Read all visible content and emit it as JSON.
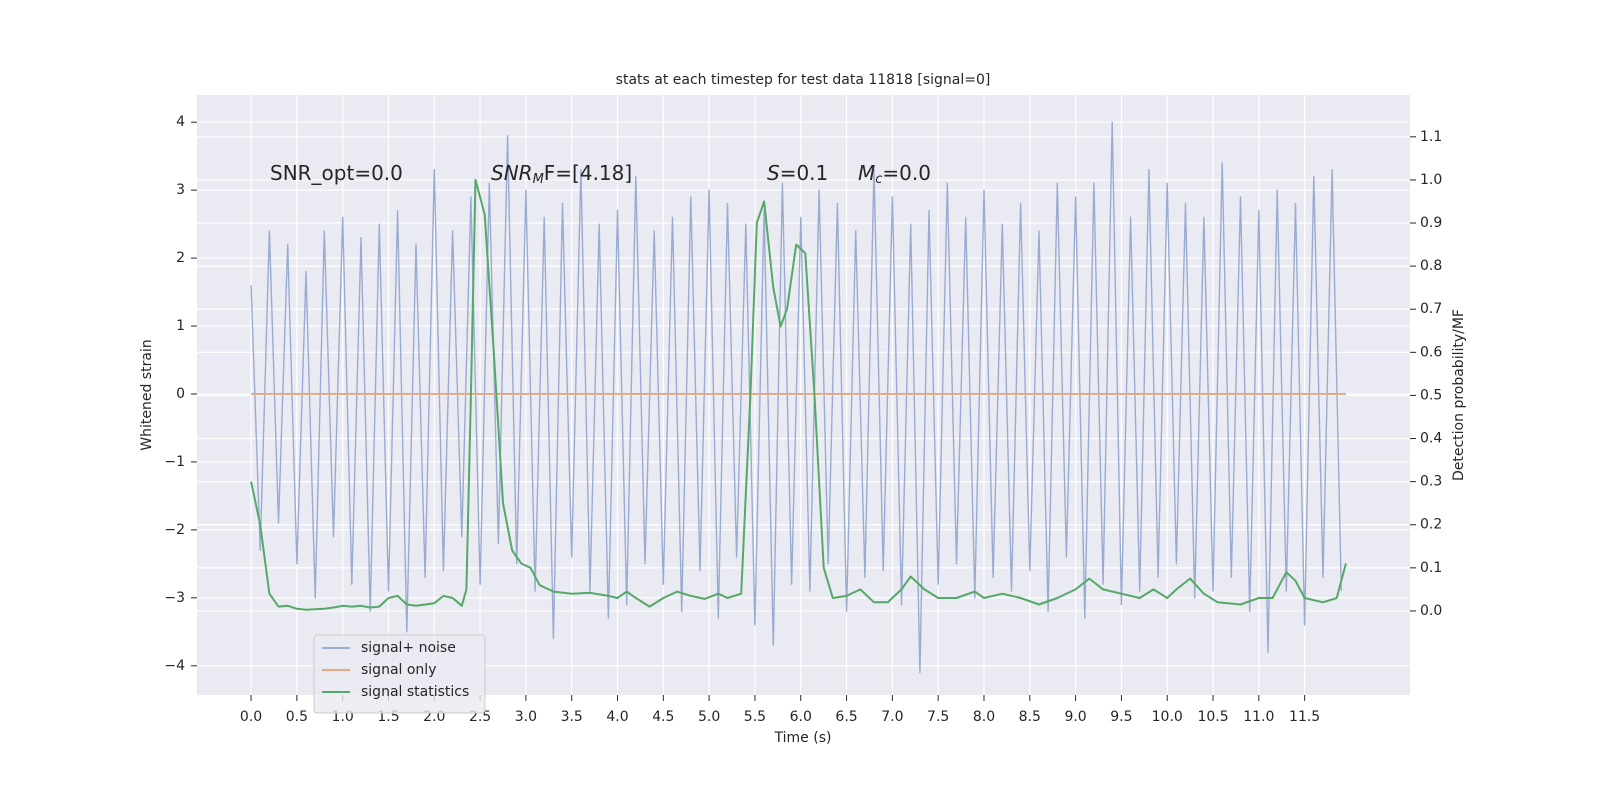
{
  "chart_data": {
    "type": "line",
    "title": "stats at each timestep for test data 11818 [signal=0]",
    "xlabel": "Time (s)",
    "ylabel": "Whitened strain",
    "y2label": "Detection probability/MF",
    "xlim": [
      -0.59,
      12.65
    ],
    "ylim": [
      -4.43,
      4.4
    ],
    "y2lim": [
      -0.195,
      1.197
    ],
    "grid": true,
    "legend": "lower left",
    "xticks": [
      {
        "value": 0,
        "label": "0.0"
      },
      0.5,
      {
        "value": 1,
        "label": "1.0"
      },
      1.5,
      {
        "value": 2,
        "label": "2.0"
      },
      2.5,
      {
        "value": 3,
        "label": "3.0"
      },
      3.5,
      {
        "value": 4,
        "label": "4.0"
      },
      4.5,
      {
        "value": 5,
        "label": "5.0"
      },
      5.5,
      {
        "value": 6,
        "label": "6.0"
      },
      6.5,
      {
        "value": 7,
        "label": "7.0"
      },
      7.5,
      {
        "value": 8,
        "label": "8.0"
      },
      8.5,
      {
        "value": 9,
        "label": "9.0"
      },
      9.5,
      {
        "value": 10,
        "label": "10.0"
      },
      10.5,
      {
        "value": 11,
        "label": "11.0"
      },
      11.5
    ],
    "yticks": [
      {
        "value": -4,
        "label": "−4"
      },
      {
        "value": -3,
        "label": "−3"
      },
      {
        "value": -2,
        "label": "−2"
      },
      {
        "value": -1,
        "label": "−1"
      },
      0,
      1,
      2,
      3,
      4
    ],
    "y2ticks": [
      {
        "value": 0,
        "label": "0.0"
      },
      0.1,
      0.2,
      0.3,
      0.4,
      0.5,
      0.6,
      0.7,
      0.8,
      0.9,
      {
        "value": 1,
        "label": "1.0"
      },
      1.1
    ],
    "annotations": [
      {
        "main": "SNR_opt=0.0"
      },
      {
        "main": "SNR",
        "sub": "M",
        "tail": "F=[4.18]"
      },
      {
        "main": "S",
        "tail": "=0.1"
      },
      {
        "main": "M",
        "sub": "c",
        "tail": "=0.0"
      }
    ],
    "series": [
      {
        "name": "signal+ noise",
        "color": "#9aabd1",
        "x": [
          0.0,
          0.1,
          0.2,
          0.3,
          0.4,
          0.5,
          0.6,
          0.7,
          0.8,
          0.9,
          1.0,
          1.1,
          1.2,
          1.3,
          1.4,
          1.5,
          1.6,
          1.7,
          1.8,
          1.9,
          2.0,
          2.1,
          2.2,
          2.3,
          2.4,
          2.5,
          2.6,
          2.7,
          2.8,
          2.9,
          3.0,
          3.1,
          3.2,
          3.3,
          3.4,
          3.5,
          3.6,
          3.7,
          3.8,
          3.9,
          4.0,
          4.1,
          4.2,
          4.3,
          4.4,
          4.5,
          4.6,
          4.7,
          4.8,
          4.9,
          5.0,
          5.1,
          5.2,
          5.3,
          5.4,
          5.5,
          5.6,
          5.7,
          5.8,
          5.9,
          6.0,
          6.1,
          6.2,
          6.3,
          6.4,
          6.5,
          6.6,
          6.7,
          6.8,
          6.9,
          7.0,
          7.1,
          7.2,
          7.3,
          7.4,
          7.5,
          7.6,
          7.7,
          7.8,
          7.9,
          8.0,
          8.1,
          8.2,
          8.3,
          8.4,
          8.5,
          8.6,
          8.7,
          8.8,
          8.9,
          9.0,
          9.1,
          9.2,
          9.3,
          9.4,
          9.5,
          9.6,
          9.7,
          9.8,
          9.9,
          10.0,
          10.1,
          10.2,
          10.3,
          10.4,
          10.5,
          10.6,
          10.7,
          10.8,
          10.9,
          11.0,
          11.1,
          11.2,
          11.3,
          11.4,
          11.5,
          11.6,
          11.7,
          11.8,
          11.9
        ],
        "values": [
          1.6,
          -2.3,
          2.4,
          -1.9,
          2.2,
          -2.5,
          1.8,
          -3.0,
          2.4,
          -2.1,
          2.6,
          -2.8,
          2.3,
          -3.2,
          2.5,
          -2.9,
          2.7,
          -3.5,
          2.2,
          -2.7,
          3.3,
          -2.6,
          2.4,
          -2.1,
          2.9,
          -2.8,
          3.1,
          -2.2,
          3.8,
          -2.5,
          3.0,
          -2.9,
          2.6,
          -3.6,
          2.8,
          -2.4,
          3.3,
          -2.9,
          2.5,
          -3.3,
          2.7,
          -3.1,
          3.2,
          -2.5,
          2.4,
          -2.8,
          2.6,
          -3.2,
          2.9,
          -2.6,
          3.0,
          -3.3,
          2.8,
          -2.4,
          2.5,
          -3.4,
          2.7,
          -3.7,
          3.1,
          -2.8,
          2.6,
          -2.9,
          3.0,
          -2.5,
          2.8,
          -3.2,
          2.4,
          -2.7,
          3.3,
          -2.6,
          2.9,
          -3.1,
          2.5,
          -4.1,
          2.7,
          -2.8,
          3.1,
          -2.5,
          2.6,
          -3.0,
          3.0,
          -2.7,
          2.5,
          -2.9,
          2.8,
          -2.6,
          2.4,
          -3.2,
          3.1,
          -2.4,
          2.9,
          -3.3,
          3.1,
          -2.8,
          4.0,
          -3.1,
          2.6,
          -2.9,
          3.3,
          -2.7,
          3.1,
          -2.5,
          2.8,
          -3.0,
          2.6,
          -2.9,
          3.4,
          -2.7,
          2.9,
          -3.2,
          2.7,
          -3.8,
          3.0,
          -2.9,
          2.8,
          -3.4,
          3.2,
          -2.7,
          3.3,
          -2.9
        ]
      },
      {
        "name": "signal only",
        "color": "#e8a888",
        "x": [
          0.0,
          11.95
        ],
        "values": [
          0,
          0
        ]
      },
      {
        "name": "signal statistics",
        "color": "#55a868",
        "axis": "y2",
        "x": [
          0.0,
          0.1,
          0.2,
          0.3,
          0.4,
          0.5,
          0.6,
          0.7,
          0.8,
          0.9,
          1.0,
          1.1,
          1.2,
          1.3,
          1.4,
          1.5,
          1.6,
          1.7,
          1.8,
          1.9,
          2.0,
          2.1,
          2.2,
          2.3,
          2.35,
          2.4,
          2.45,
          2.55,
          2.65,
          2.75,
          2.85,
          2.95,
          3.05,
          3.15,
          3.3,
          3.5,
          3.7,
          3.9,
          4.0,
          4.1,
          4.2,
          4.35,
          4.5,
          4.65,
          4.8,
          4.95,
          5.1,
          5.2,
          5.35,
          5.45,
          5.52,
          5.6,
          5.7,
          5.78,
          5.85,
          5.95,
          6.05,
          6.15,
          6.25,
          6.35,
          6.5,
          6.65,
          6.8,
          6.95,
          7.1,
          7.2,
          7.35,
          7.5,
          7.7,
          7.9,
          8.0,
          8.2,
          8.4,
          8.6,
          8.8,
          9.0,
          9.15,
          9.3,
          9.5,
          9.7,
          9.85,
          10.0,
          10.1,
          10.25,
          10.4,
          10.55,
          10.8,
          11.0,
          11.15,
          11.3,
          11.4,
          11.5,
          11.7,
          11.85,
          11.95
        ],
        "values": [
          0.3,
          0.2,
          0.04,
          0.01,
          0.012,
          0.005,
          0.003,
          0.004,
          0.005,
          0.008,
          0.012,
          0.01,
          0.012,
          0.008,
          0.01,
          0.03,
          0.035,
          0.015,
          0.012,
          0.015,
          0.018,
          0.035,
          0.03,
          0.012,
          0.05,
          0.5,
          1.0,
          0.92,
          0.6,
          0.25,
          0.14,
          0.11,
          0.1,
          0.06,
          0.045,
          0.04,
          0.042,
          0.035,
          0.03,
          0.045,
          0.03,
          0.01,
          0.03,
          0.045,
          0.035,
          0.028,
          0.04,
          0.03,
          0.04,
          0.5,
          0.9,
          0.95,
          0.75,
          0.66,
          0.7,
          0.85,
          0.83,
          0.5,
          0.1,
          0.03,
          0.035,
          0.05,
          0.02,
          0.02,
          0.05,
          0.08,
          0.05,
          0.03,
          0.03,
          0.045,
          0.03,
          0.04,
          0.03,
          0.015,
          0.03,
          0.05,
          0.075,
          0.05,
          0.04,
          0.03,
          0.05,
          0.03,
          0.05,
          0.075,
          0.04,
          0.02,
          0.015,
          0.03,
          0.03,
          0.09,
          0.07,
          0.03,
          0.02,
          0.03,
          0.11
        ]
      }
    ]
  }
}
